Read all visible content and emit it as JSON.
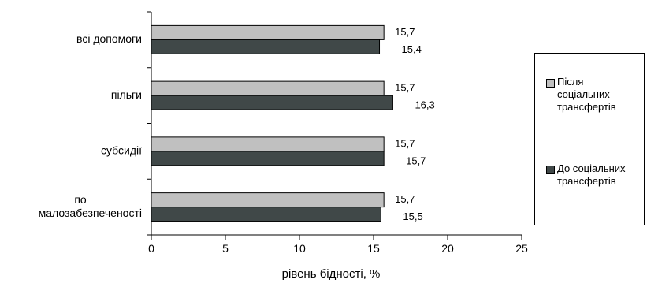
{
  "chart_data": {
    "type": "bar",
    "orientation": "horizontal",
    "categories": [
      [
        "всі допомоги"
      ],
      [
        "пільги"
      ],
      [
        "субсидії"
      ],
      [
        "по",
        "малозабезпеченості"
      ]
    ],
    "series": [
      {
        "name": "Після соціальних трансфертів",
        "color": "#c0c0c0",
        "values": [
          15.7,
          15.7,
          15.7,
          15.7
        ],
        "value_labels": [
          "15,7",
          "15,7",
          "15,7",
          "15,7"
        ]
      },
      {
        "name": "До соціальних трансфертів",
        "color": "#404848",
        "values": [
          15.4,
          16.3,
          15.7,
          15.5
        ],
        "value_labels": [
          "15,4",
          "16,3",
          "15,7",
          "15,5"
        ]
      }
    ],
    "xlabel": "рівень бідності, %",
    "ylabel": "",
    "xlim": [
      0,
      25
    ],
    "xticks": [
      0,
      5,
      10,
      15,
      20,
      25
    ],
    "xtick_labels": [
      "0",
      "5",
      "10",
      "15",
      "20",
      "25"
    ],
    "grid": false,
    "legend_position": "right"
  },
  "legend": {
    "items": [
      {
        "lines": [
          "Після",
          "соціальних",
          "трансфертів"
        ],
        "color": "#c0c0c0"
      },
      {
        "lines": [
          "До соціальних",
          "трансфертів"
        ],
        "color": "#404848"
      }
    ]
  }
}
